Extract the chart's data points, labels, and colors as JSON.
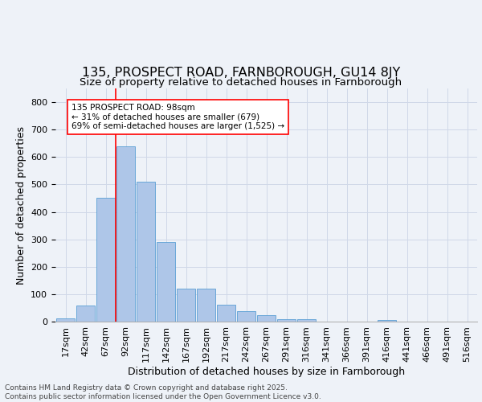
{
  "title": "135, PROSPECT ROAD, FARNBOROUGH, GU14 8JY",
  "subtitle": "Size of property relative to detached houses in Farnborough",
  "xlabel": "Distribution of detached houses by size in Farnborough",
  "ylabel": "Number of detached properties",
  "bar_labels": [
    "17sqm",
    "42sqm",
    "67sqm",
    "92sqm",
    "117sqm",
    "142sqm",
    "167sqm",
    "192sqm",
    "217sqm",
    "242sqm",
    "267sqm",
    "291sqm",
    "316sqm",
    "341sqm",
    "366sqm",
    "391sqm",
    "416sqm",
    "441sqm",
    "466sqm",
    "491sqm",
    "516sqm"
  ],
  "bar_values": [
    12,
    60,
    450,
    640,
    510,
    290,
    120,
    120,
    62,
    38,
    22,
    9,
    8,
    0,
    0,
    0,
    5,
    0,
    0,
    0,
    0
  ],
  "bar_color": "#aec6e8",
  "bar_edge_color": "#5a9fd4",
  "grid_color": "#d0d8e8",
  "background_color": "#eef2f8",
  "vline_color": "red",
  "vline_index": 3,
  "annotation_text": "135 PROSPECT ROAD: 98sqm\n← 31% of detached houses are smaller (679)\n69% of semi-detached houses are larger (1,525) →",
  "annotation_box_color": "white",
  "annotation_box_edge": "red",
  "footer_text": "Contains HM Land Registry data © Crown copyright and database right 2025.\nContains public sector information licensed under the Open Government Licence v3.0.",
  "ylim": [
    0,
    850
  ],
  "yticks": [
    0,
    100,
    200,
    300,
    400,
    500,
    600,
    700,
    800
  ],
  "title_fontsize": 11.5,
  "subtitle_fontsize": 9.5,
  "xlabel_fontsize": 9,
  "ylabel_fontsize": 9,
  "tick_fontsize": 8,
  "footer_fontsize": 6.5
}
